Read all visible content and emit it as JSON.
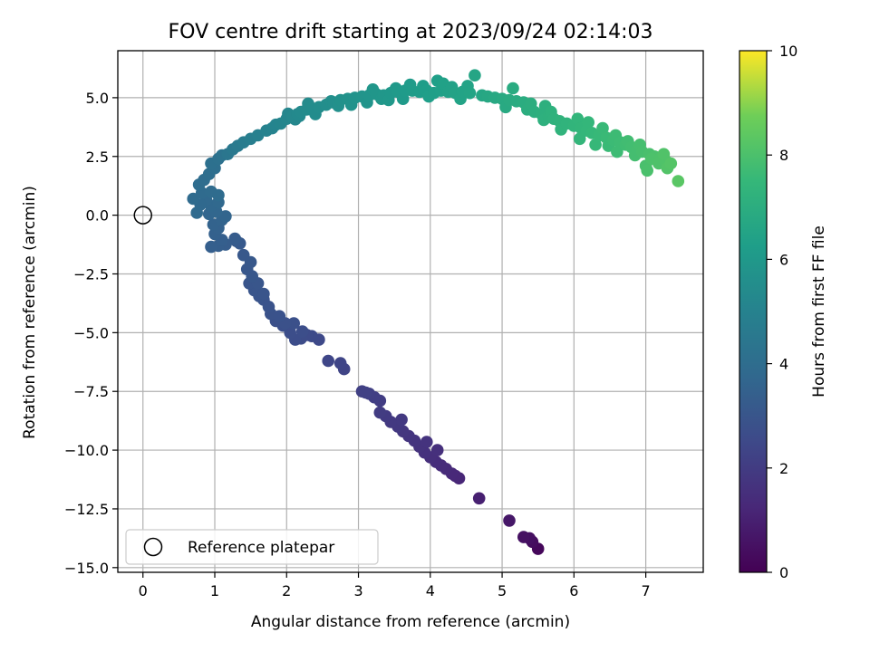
{
  "chart_data": {
    "type": "scatter",
    "title": "FOV centre drift starting at 2023/09/24 02:14:03",
    "xlabel": "Angular distance from reference (arcmin)",
    "ylabel": "Rotation from reference (arcmin)",
    "xlim": [
      -0.35,
      7.8
    ],
    "ylim": [
      -15.2,
      7.0
    ],
    "xticks": [
      "0",
      "1",
      "2",
      "3",
      "4",
      "5",
      "6",
      "7"
    ],
    "xtick_values": [
      0,
      1,
      2,
      3,
      4,
      5,
      6,
      7
    ],
    "yticks": [
      "5.0",
      "2.5",
      "0.0",
      "−2.5",
      "−5.0",
      "−7.5",
      "−10.0",
      "−12.5",
      "−15.0"
    ],
    "ytick_values": [
      5.0,
      2.5,
      0.0,
      -2.5,
      -5.0,
      -7.5,
      -10.0,
      -12.5,
      -15.0
    ],
    "grid": true,
    "colormap": "viridis",
    "reference_point": {
      "x": 0,
      "y": 0
    },
    "legend": {
      "placement": "lower-left",
      "label": "Reference platepar"
    },
    "colorbar": {
      "label": "Hours from first FF file",
      "range": [
        0,
        10
      ],
      "ticks": [
        "0",
        "2",
        "4",
        "6",
        "8",
        "10"
      ],
      "tick_values": [
        0,
        2,
        4,
        6,
        8,
        10
      ]
    },
    "points": [
      [
        5.5,
        -14.2,
        0.2
      ],
      [
        5.42,
        -13.9,
        0.35
      ],
      [
        5.38,
        -13.75,
        0.45
      ],
      [
        5.3,
        -13.7,
        0.5
      ],
      [
        5.1,
        -13.0,
        0.7
      ],
      [
        4.68,
        -12.05,
        1.0
      ],
      [
        4.4,
        -11.2,
        1.2
      ],
      [
        4.35,
        -11.1,
        1.25
      ],
      [
        4.3,
        -11.0,
        1.3
      ],
      [
        4.22,
        -10.8,
        1.35
      ],
      [
        4.15,
        -10.65,
        1.4
      ],
      [
        4.08,
        -10.5,
        1.45
      ],
      [
        4.0,
        -10.3,
        1.5
      ],
      [
        4.1,
        -10.0,
        1.55
      ],
      [
        3.92,
        -10.1,
        1.6
      ],
      [
        3.85,
        -9.85,
        1.65
      ],
      [
        3.95,
        -9.65,
        1.68
      ],
      [
        3.78,
        -9.6,
        1.7
      ],
      [
        3.7,
        -9.4,
        1.75
      ],
      [
        3.62,
        -9.2,
        1.8
      ],
      [
        3.55,
        -9.0,
        1.85
      ],
      [
        3.6,
        -8.7,
        1.88
      ],
      [
        3.45,
        -8.8,
        1.9
      ],
      [
        3.38,
        -8.55,
        1.95
      ],
      [
        3.3,
        -8.4,
        2.0
      ],
      [
        3.3,
        -7.9,
        2.05
      ],
      [
        3.22,
        -7.75,
        2.1
      ],
      [
        3.15,
        -7.6,
        2.12
      ],
      [
        3.05,
        -7.5,
        2.15
      ],
      [
        3.1,
        -7.55,
        2.18
      ],
      [
        2.8,
        -6.55,
        2.3
      ],
      [
        2.75,
        -6.3,
        2.35
      ],
      [
        2.58,
        -6.2,
        2.4
      ],
      [
        2.45,
        -5.3,
        2.5
      ],
      [
        2.35,
        -5.15,
        2.55
      ],
      [
        2.28,
        -5.1,
        2.6
      ],
      [
        2.2,
        -5.25,
        2.62
      ],
      [
        2.12,
        -5.3,
        2.65
      ],
      [
        2.05,
        -5.0,
        2.7
      ],
      [
        2.22,
        -4.95,
        2.72
      ],
      [
        1.95,
        -4.7,
        2.75
      ],
      [
        2.1,
        -4.6,
        2.78
      ],
      [
        1.85,
        -4.5,
        2.8
      ],
      [
        1.98,
        -4.6,
        2.82
      ],
      [
        1.78,
        -4.2,
        2.85
      ],
      [
        1.9,
        -4.3,
        2.88
      ],
      [
        1.68,
        -3.6,
        2.9
      ],
      [
        1.75,
        -3.9,
        2.92
      ],
      [
        1.62,
        -3.45,
        2.95
      ],
      [
        1.55,
        -3.2,
        2.97
      ],
      [
        1.68,
        -3.35,
        2.98
      ],
      [
        1.48,
        -2.9,
        3.0
      ],
      [
        1.6,
        -2.9,
        3.02
      ],
      [
        1.52,
        -2.6,
        3.05
      ],
      [
        1.45,
        -2.3,
        3.08
      ],
      [
        1.5,
        -2.0,
        3.1
      ],
      [
        1.4,
        -1.7,
        3.12
      ],
      [
        1.35,
        -1.2,
        3.15
      ],
      [
        1.3,
        -1.1,
        3.2
      ],
      [
        1.28,
        -1.0,
        3.25
      ],
      [
        1.15,
        -1.25,
        3.3
      ],
      [
        1.05,
        -1.3,
        3.35
      ],
      [
        0.95,
        -1.35,
        3.38
      ],
      [
        1.1,
        -1.05,
        3.4
      ],
      [
        1.0,
        -0.8,
        3.45
      ],
      [
        1.05,
        -0.55,
        3.5
      ],
      [
        0.98,
        -0.4,
        3.55
      ],
      [
        1.1,
        -0.2,
        3.58
      ],
      [
        1.15,
        -0.05,
        3.62
      ],
      [
        0.92,
        0.05,
        3.65
      ],
      [
        1.02,
        0.15,
        3.7
      ],
      [
        0.95,
        0.4,
        3.75
      ],
      [
        1.05,
        0.55,
        3.78
      ],
      [
        0.88,
        0.65,
        3.8
      ],
      [
        0.8,
        0.45,
        3.82
      ],
      [
        0.75,
        0.1,
        3.85
      ],
      [
        0.7,
        0.7,
        3.88
      ],
      [
        0.82,
        0.95,
        3.9
      ],
      [
        0.95,
        1.0,
        3.92
      ],
      [
        1.05,
        0.85,
        3.95
      ],
      [
        0.78,
        1.3,
        3.98
      ],
      [
        0.85,
        1.5,
        4.0
      ],
      [
        0.92,
        1.75,
        4.05
      ],
      [
        1.0,
        2.0,
        4.1
      ],
      [
        0.95,
        2.2,
        4.15
      ],
      [
        1.05,
        2.4,
        4.2
      ],
      [
        1.1,
        2.55,
        4.3
      ],
      [
        1.18,
        2.6,
        4.4
      ],
      [
        1.25,
        2.8,
        4.5
      ],
      [
        1.32,
        2.95,
        4.6
      ],
      [
        1.4,
        3.1,
        4.7
      ],
      [
        1.5,
        3.25,
        4.8
      ],
      [
        1.6,
        3.4,
        4.9
      ],
      [
        1.72,
        3.6,
        5.0
      ],
      [
        1.8,
        3.7,
        5.05
      ],
      [
        1.85,
        3.85,
        5.1
      ],
      [
        1.92,
        3.9,
        5.15
      ],
      [
        2.0,
        4.1,
        5.2
      ],
      [
        2.08,
        4.2,
        5.25
      ],
      [
        2.15,
        4.3,
        5.3
      ],
      [
        2.2,
        4.4,
        5.35
      ],
      [
        2.28,
        4.5,
        5.4
      ],
      [
        2.35,
        4.55,
        5.45
      ],
      [
        2.45,
        4.6,
        5.5
      ],
      [
        2.55,
        4.7,
        5.55
      ],
      [
        2.65,
        4.8,
        5.6
      ],
      [
        2.75,
        4.9,
        5.65
      ],
      [
        2.85,
        4.95,
        5.7
      ],
      [
        2.95,
        5.0,
        5.75
      ],
      [
        3.05,
        5.05,
        5.8
      ],
      [
        3.15,
        5.1,
        5.85
      ],
      [
        3.25,
        5.15,
        5.9
      ],
      [
        3.35,
        5.1,
        5.95
      ],
      [
        3.45,
        5.2,
        6.0
      ],
      [
        3.55,
        5.25,
        6.05
      ],
      [
        3.65,
        5.3,
        6.1
      ],
      [
        3.75,
        5.3,
        6.15
      ],
      [
        3.85,
        5.25,
        6.2
      ],
      [
        3.95,
        5.3,
        6.25
      ],
      [
        4.05,
        5.2,
        6.3
      ],
      [
        4.15,
        5.3,
        6.35
      ],
      [
        4.25,
        5.25,
        6.4
      ],
      [
        4.35,
        5.2,
        6.45
      ],
      [
        4.45,
        5.25,
        6.5
      ],
      [
        4.55,
        5.2,
        6.55
      ],
      [
        4.62,
        5.95,
        6.6
      ],
      [
        4.72,
        5.1,
        6.65
      ],
      [
        4.8,
        5.05,
        6.7
      ],
      [
        4.9,
        5.0,
        6.75
      ],
      [
        5.0,
        4.95,
        6.8
      ],
      [
        5.1,
        4.9,
        6.85
      ],
      [
        5.2,
        4.85,
        6.9
      ],
      [
        5.3,
        4.8,
        6.95
      ],
      [
        5.35,
        4.5,
        7.0
      ],
      [
        5.45,
        4.4,
        7.05
      ],
      [
        5.55,
        4.3,
        7.1
      ],
      [
        5.65,
        4.2,
        7.15
      ],
      [
        5.72,
        4.1,
        7.2
      ],
      [
        5.8,
        4.0,
        7.25
      ],
      [
        5.9,
        3.9,
        7.3
      ],
      [
        6.0,
        3.8,
        7.35
      ],
      [
        6.1,
        3.7,
        7.4
      ],
      [
        6.18,
        3.6,
        7.45
      ],
      [
        6.25,
        3.5,
        7.5
      ],
      [
        6.35,
        3.4,
        7.55
      ],
      [
        6.45,
        3.3,
        7.6
      ],
      [
        6.55,
        3.2,
        7.65
      ],
      [
        6.65,
        3.1,
        7.7
      ],
      [
        6.72,
        3.0,
        7.75
      ],
      [
        6.8,
        2.9,
        7.8
      ],
      [
        6.88,
        2.8,
        7.85
      ],
      [
        6.95,
        2.7,
        7.9
      ],
      [
        7.05,
        2.6,
        7.95
      ],
      [
        7.12,
        2.5,
        8.0
      ],
      [
        7.2,
        2.4,
        8.05
      ],
      [
        7.28,
        2.3,
        8.1
      ],
      [
        7.35,
        2.2,
        8.2
      ],
      [
        7.45,
        1.45,
        8.3
      ],
      [
        2.12,
        4.08,
        5.22
      ],
      [
        2.3,
        4.75,
        5.42
      ],
      [
        2.9,
        4.7,
        5.72
      ],
      [
        3.12,
        4.8,
        5.82
      ],
      [
        3.42,
        4.9,
        5.98
      ],
      [
        3.52,
        5.4,
        6.02
      ],
      [
        3.72,
        5.55,
        6.12
      ],
      [
        3.98,
        5.05,
        6.28
      ],
      [
        4.18,
        5.6,
        6.38
      ],
      [
        4.42,
        4.95,
        6.48
      ],
      [
        4.52,
        5.5,
        6.52
      ],
      [
        5.15,
        5.4,
        6.9
      ],
      [
        5.05,
        4.6,
        6.82
      ],
      [
        5.4,
        4.75,
        7.02
      ],
      [
        5.6,
        4.65,
        7.12
      ],
      [
        5.58,
        4.05,
        7.14
      ],
      [
        5.68,
        4.4,
        7.18
      ],
      [
        5.82,
        3.65,
        7.28
      ],
      [
        6.05,
        4.1,
        7.38
      ],
      [
        6.08,
        3.25,
        7.42
      ],
      [
        6.2,
        3.95,
        7.46
      ],
      [
        6.3,
        3.0,
        7.52
      ],
      [
        6.4,
        3.7,
        7.58
      ],
      [
        6.48,
        2.95,
        7.62
      ],
      [
        6.58,
        3.4,
        7.68
      ],
      [
        6.6,
        2.7,
        7.7
      ],
      [
        6.75,
        3.15,
        7.78
      ],
      [
        6.85,
        2.55,
        7.84
      ],
      [
        6.92,
        3.0,
        7.88
      ],
      [
        7.0,
        2.1,
        7.96
      ],
      [
        7.02,
        1.9,
        7.98
      ],
      [
        7.08,
        2.4,
        8.02
      ],
      [
        7.18,
        2.2,
        8.06
      ],
      [
        7.25,
        2.6,
        8.12
      ],
      [
        7.3,
        2.0,
        8.15
      ],
      [
        2.02,
        4.32,
        5.2
      ],
      [
        2.18,
        4.22,
        5.28
      ],
      [
        2.4,
        4.3,
        5.46
      ],
      [
        2.62,
        4.85,
        5.58
      ],
      [
        2.72,
        4.65,
        5.62
      ],
      [
        3.2,
        5.35,
        5.88
      ],
      [
        3.32,
        4.95,
        5.92
      ],
      [
        3.62,
        4.95,
        6.08
      ],
      [
        3.9,
        5.5,
        6.22
      ],
      [
        4.1,
        5.72,
        6.32
      ],
      [
        4.3,
        5.45,
        6.42
      ]
    ]
  }
}
